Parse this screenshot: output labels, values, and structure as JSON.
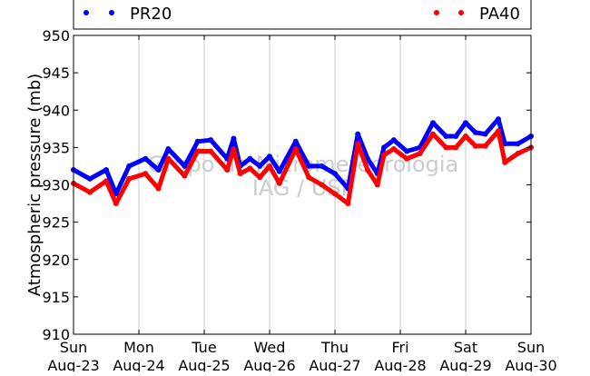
{
  "chart_data": {
    "type": "scatter",
    "title": "",
    "xlabel": "",
    "ylabel": "Atmospheric pressure (mb)",
    "ylim": [
      910,
      950
    ],
    "yticks": [
      910,
      915,
      920,
      925,
      930,
      935,
      940,
      945,
      950
    ],
    "xlim": [
      0,
      7
    ],
    "xtick_labels": [
      [
        "Sun",
        "Aug-23"
      ],
      [
        "Mon",
        "Aug-24"
      ],
      [
        "Tue",
        "Aug-25"
      ],
      [
        "Wed",
        "Aug-26"
      ],
      [
        "Thu",
        "Aug-27"
      ],
      [
        "Fri",
        "Aug-28"
      ],
      [
        "Sat",
        "Aug-29"
      ],
      [
        "Sun",
        "Aug-30"
      ]
    ],
    "grid": "vertical",
    "legend_position": "top",
    "watermark": [
      "Grupo de Micrometeorologia",
      "IAG / USP"
    ],
    "series": [
      {
        "name": "PR20",
        "color": "#0000ff",
        "x": [
          0,
          0.25,
          0.5,
          0.65,
          0.85,
          1.1,
          1.3,
          1.45,
          1.7,
          1.9,
          2.1,
          2.35,
          2.45,
          2.55,
          2.7,
          2.85,
          3.0,
          3.15,
          3.4,
          3.6,
          3.8,
          4.0,
          4.2,
          4.35,
          4.5,
          4.65,
          4.75,
          4.9,
          5.1,
          5.3,
          5.5,
          5.7,
          5.85,
          6.0,
          6.15,
          6.3,
          6.5,
          6.6,
          6.8,
          7.0
        ],
        "y": [
          932.0,
          930.8,
          932.0,
          928.8,
          932.5,
          933.5,
          932.0,
          934.8,
          932.5,
          935.8,
          936.0,
          933.5,
          936.2,
          932.5,
          933.5,
          932.5,
          933.8,
          931.8,
          935.8,
          932.5,
          932.5,
          931.5,
          929.5,
          936.8,
          933.5,
          931.5,
          935.0,
          936.0,
          934.5,
          935.0,
          938.3,
          936.5,
          936.5,
          938.3,
          937.0,
          936.8,
          938.8,
          935.5,
          935.5,
          936.5
        ]
      },
      {
        "name": "PA40",
        "color": "#ff0000",
        "x": [
          0,
          0.25,
          0.5,
          0.65,
          0.85,
          1.1,
          1.3,
          1.45,
          1.7,
          1.9,
          2.1,
          2.35,
          2.45,
          2.55,
          2.7,
          2.85,
          3.0,
          3.15,
          3.4,
          3.6,
          3.8,
          4.0,
          4.2,
          4.35,
          4.5,
          4.65,
          4.75,
          4.9,
          5.1,
          5.3,
          5.5,
          5.7,
          5.85,
          6.0,
          6.15,
          6.3,
          6.5,
          6.6,
          6.8,
          7.0
        ],
        "y": [
          930.2,
          929.0,
          930.5,
          927.5,
          930.8,
          931.5,
          929.5,
          933.5,
          931.2,
          934.5,
          934.5,
          932.0,
          934.8,
          931.5,
          932.2,
          931.0,
          932.5,
          930.2,
          934.8,
          931.0,
          930.0,
          928.8,
          927.5,
          935.5,
          932.0,
          930.0,
          934.0,
          934.8,
          933.5,
          934.2,
          936.8,
          935.0,
          935.0,
          936.5,
          935.2,
          935.2,
          937.2,
          933.0,
          934.2,
          935.0
        ]
      }
    ]
  }
}
